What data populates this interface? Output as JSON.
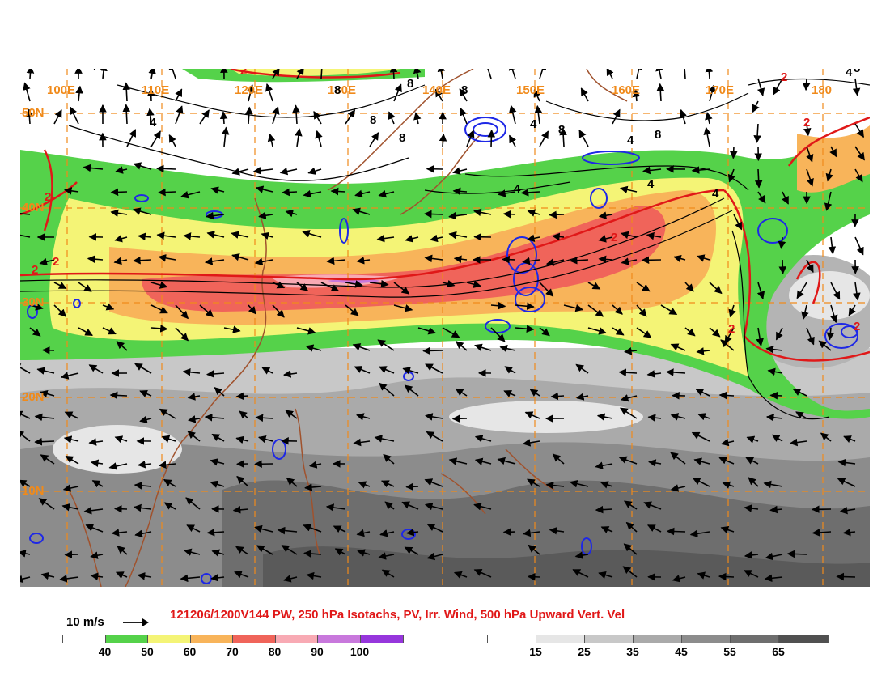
{
  "title": "121206/1200V144 PW, 250 hPa Isotachs, PV, Irr. Wind, 500 hPa Upward Vert. Vel",
  "reference_vector": "10 m/s",
  "longitude_labels": [
    "100E",
    "110E",
    "120E",
    "130E",
    "140E",
    "150E",
    "160E",
    "170E",
    "180"
  ],
  "latitude_labels": [
    "50N",
    "40N",
    "30N",
    "20N",
    "10N"
  ],
  "contour_labels": {
    "pv": "2",
    "vertical_velocity_a": "4",
    "vertical_velocity_b": "8"
  },
  "isotach_colorbar": {
    "ticks": [
      "40",
      "50",
      "60",
      "70",
      "80",
      "90",
      "100"
    ],
    "colors": [
      "#ffffff",
      "#55d24a",
      "#f4f476",
      "#f8b45a",
      "#f0645a",
      "#f8aab4",
      "#c878dc",
      "#9636dc"
    ]
  },
  "pw_colorbar": {
    "ticks": [
      "15",
      "25",
      "35",
      "45",
      "55",
      "65"
    ],
    "colors": [
      "#ffffff",
      "#e6e6e6",
      "#c8c8c8",
      "#aaaaaa",
      "#8c8c8c",
      "#6e6e6e",
      "#505050"
    ]
  },
  "colors": {
    "graticule": "#f08a1a",
    "coastline": "#a0522d",
    "pv_contour": "#e01818",
    "vertical_velocity": "#1e28e6",
    "title": "#e01818"
  }
}
